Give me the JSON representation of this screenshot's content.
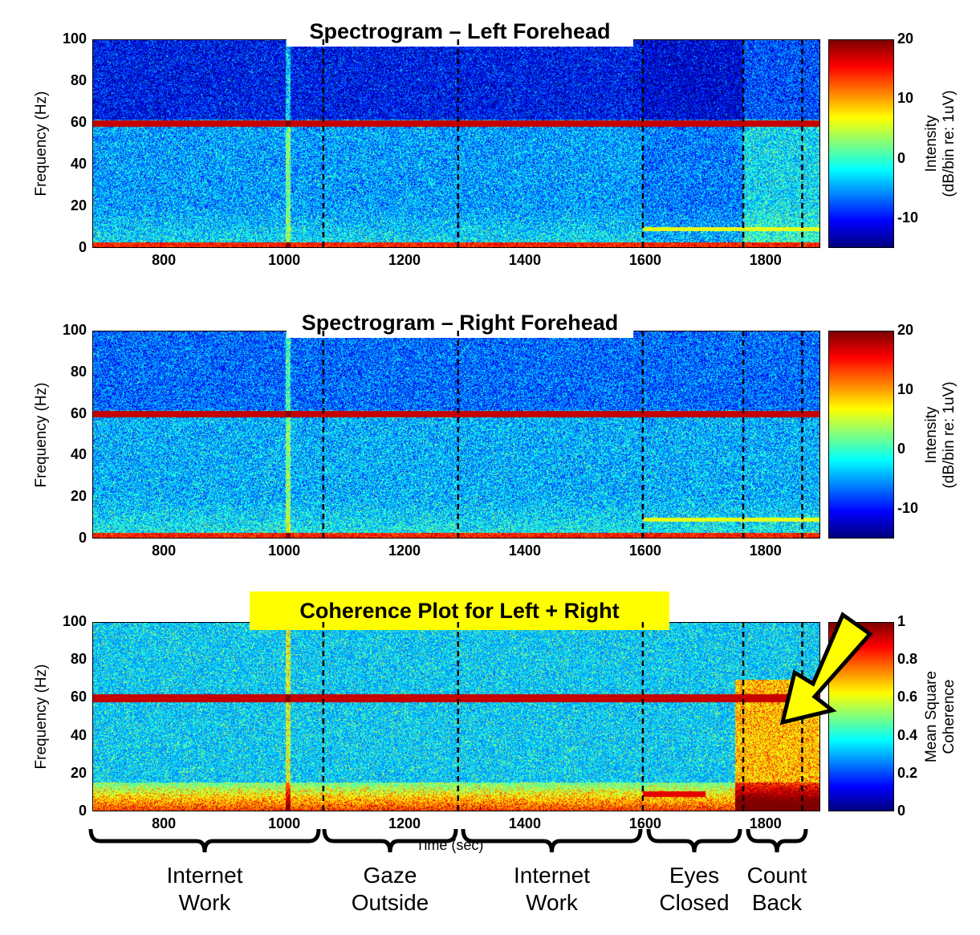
{
  "panels": [
    {
      "title": "Spectrogram – Left Forehead",
      "ylabel": "Frequency (Hz)",
      "colorbar_label_1": "Intensity",
      "colorbar_label_2": "(dB/bin re: 1uV)",
      "colorbar_ticks": [
        "20",
        "10",
        "0",
        "-10"
      ],
      "clim": [
        -15,
        20
      ],
      "kind": "spectrogram"
    },
    {
      "title": "Spectrogram – Right Forehead",
      "ylabel": "Frequency (Hz)",
      "colorbar_label_1": "Intensity",
      "colorbar_label_2": "(dB/bin re: 1uV)",
      "colorbar_ticks": [
        "20",
        "10",
        "0",
        "-10"
      ],
      "clim": [
        -15,
        20
      ],
      "kind": "spectrogram"
    },
    {
      "title": "Coherence Plot for Left + Right",
      "ylabel": "Frequency (Hz)",
      "colorbar_label_1": "Mean Square",
      "colorbar_label_2": "Coherence",
      "colorbar_ticks": [
        "1",
        "0.8",
        "0.6",
        "0.4",
        "0.2",
        "0"
      ],
      "clim": [
        0,
        1
      ],
      "kind": "coherence",
      "title_bg": "#ffff00"
    }
  ],
  "chart_data": {
    "type": "heatmap",
    "xlabel": "Time (sec)",
    "xlim": [
      681,
      1891
    ],
    "ylim": [
      0,
      100
    ],
    "xticks": [
      "800",
      "1000",
      "1200",
      "1400",
      "1600",
      "1800"
    ],
    "yticks": [
      "100",
      "80",
      "60",
      "40",
      "20",
      "0"
    ],
    "colormap": "jet",
    "event_markers_sec": [
      1065,
      1289,
      1596,
      1763,
      1861
    ],
    "line_noise_hz": 60,
    "segments": [
      {
        "label_1": "Internet",
        "label_2": "Work",
        "start": 681,
        "end": 1065
      },
      {
        "label_1": "Gaze",
        "label_2": "Outside",
        "start": 1065,
        "end": 1289
      },
      {
        "label_1": "Internet",
        "label_2": "Work",
        "start": 1289,
        "end": 1596
      },
      {
        "label_1": "Eyes",
        "label_2": "Closed",
        "start": 1596,
        "end": 1763
      },
      {
        "label_1": "Count",
        "label_2": "Back",
        "start": 1763,
        "end": 1861
      }
    ]
  },
  "highlight_arrow_color": "#ffff00"
}
